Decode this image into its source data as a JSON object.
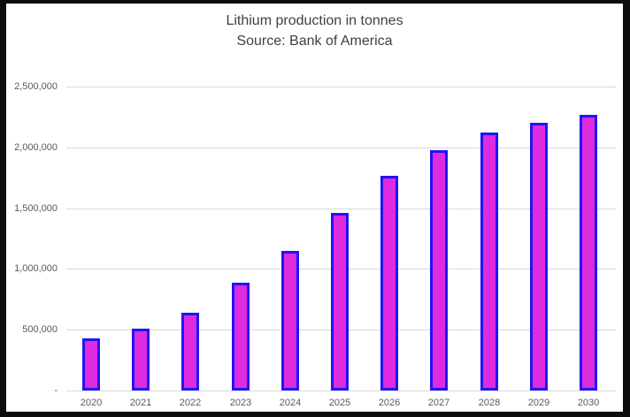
{
  "chart": {
    "title": "Lithium production in tonnes",
    "subtitle": "Source: Bank of America"
  },
  "chart_data": {
    "type": "bar",
    "title": "Lithium production in tonnes",
    "subtitle": "Source: Bank of America",
    "categories": [
      "2020",
      "2021",
      "2022",
      "2023",
      "2024",
      "2025",
      "2026",
      "2027",
      "2028",
      "2029",
      "2030"
    ],
    "values": [
      430000,
      510000,
      640000,
      885000,
      1150000,
      1460000,
      1765000,
      1975000,
      2125000,
      2200000,
      2270000
    ],
    "xlabel": "",
    "ylabel": "",
    "ylim": [
      0,
      2500000
    ],
    "grid": true,
    "legend_position": "none",
    "yticks": [
      {
        "value": 0,
        "label": "-"
      },
      {
        "value": 500000,
        "label": "500,000"
      },
      {
        "value": 1000000,
        "label": "1,000,000"
      },
      {
        "value": 1500000,
        "label": "1,500,000"
      },
      {
        "value": 2000000,
        "label": "2,000,000"
      },
      {
        "value": 2500000,
        "label": "2,500,000"
      }
    ],
    "colors": {
      "bar_fill": "#DD2BE0",
      "bar_border": "#2114F2",
      "gridline": "#D9D9D9",
      "tick_text": "#595959",
      "title_text": "#404040",
      "frame": "#0D0D0D",
      "background": "#FFFFFF"
    }
  }
}
